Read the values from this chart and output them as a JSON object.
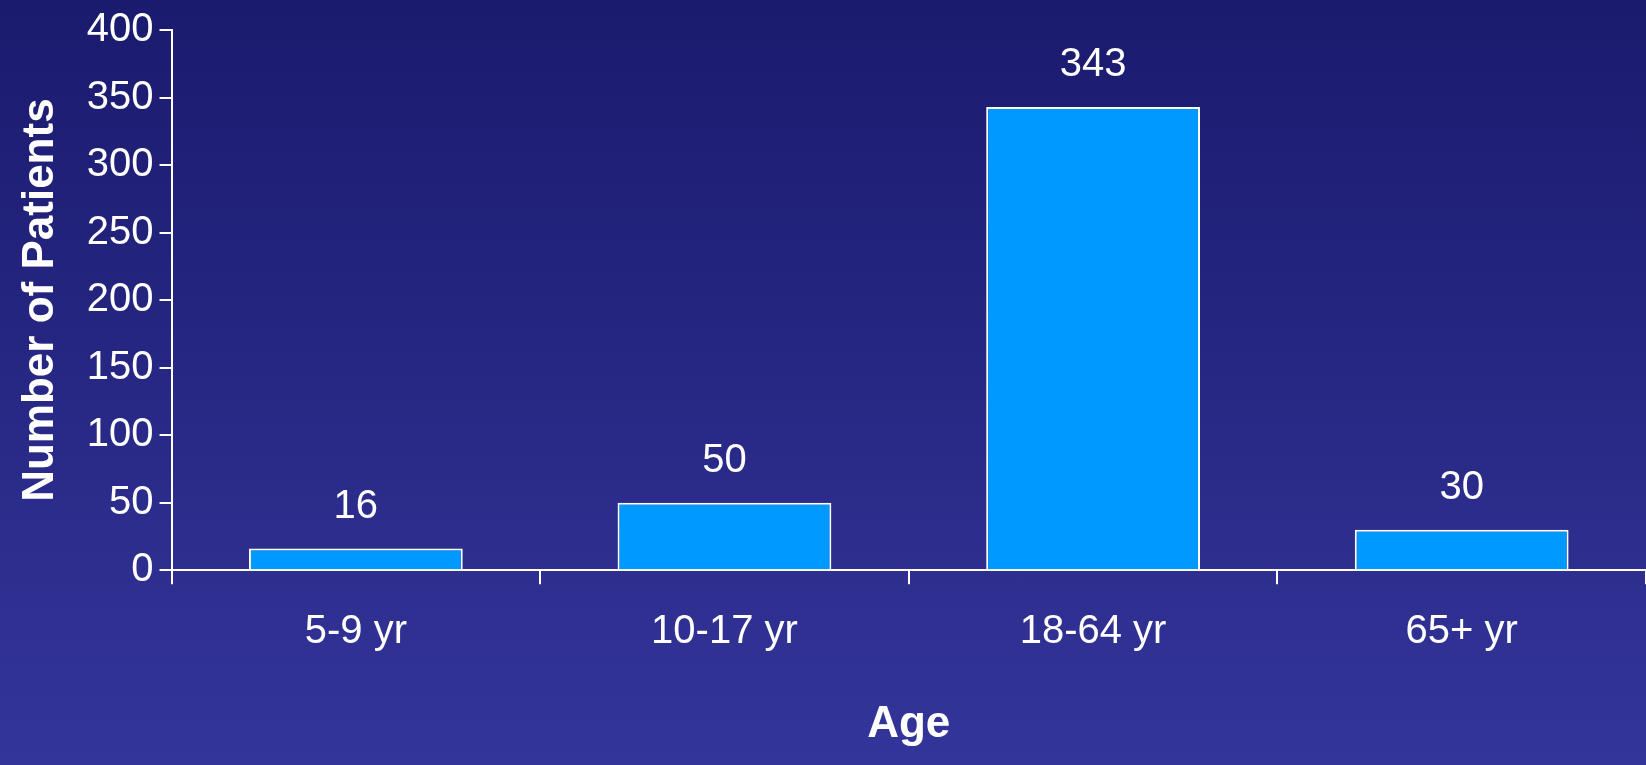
{
  "chart_data": {
    "type": "bar",
    "xlabel": "Age",
    "ylabel": "Number of Patients",
    "categories": [
      "5-9 yr",
      "10-17 yr",
      "18-64 yr",
      "65+ yr"
    ],
    "values": [
      16,
      50,
      343,
      30
    ],
    "color": "#0099ff",
    "ylim": [
      0,
      400
    ],
    "yticks": [
      0,
      50,
      100,
      150,
      200,
      250,
      300,
      350,
      400
    ],
    "data_labels": true,
    "grid": false,
    "legend": false
  }
}
